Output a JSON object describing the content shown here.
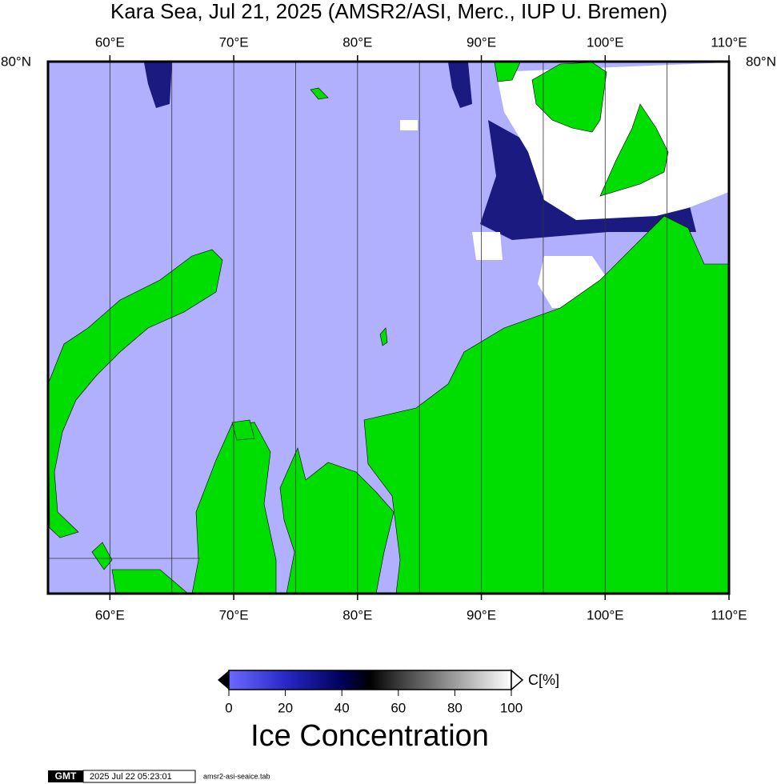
{
  "title": "Kara Sea, Jul 21, 2025 (AMSR2/ASI, Merc., IUP U. Bremen)",
  "map": {
    "xlim": [
      55,
      110
    ],
    "xticks": [
      {
        "value": 60,
        "label": "60°E"
      },
      {
        "value": 70,
        "label": "70°E"
      },
      {
        "value": 80,
        "label": "80°E"
      },
      {
        "value": 90,
        "label": "90°E"
      },
      {
        "value": 100,
        "label": "100°E"
      },
      {
        "value": 110,
        "label": "110°E"
      }
    ],
    "xgrid": [
      65,
      75,
      85,
      95,
      105
    ],
    "lat_label": "80°N"
  },
  "colorbar": {
    "label": "C[%]",
    "range": [
      0,
      100
    ],
    "ticks": [
      0,
      20,
      40,
      60,
      80,
      100
    ],
    "title": "Ice Concentration"
  },
  "footer": {
    "logo": "GMT",
    "timestamp": "2025 Jul 22 05:23:01",
    "file": "amsr2-asi-seaice.tab"
  }
}
